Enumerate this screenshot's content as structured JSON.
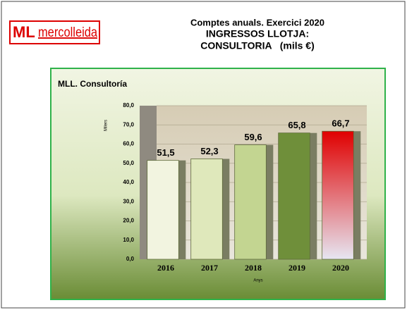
{
  "logo": {
    "mark": "ML",
    "text": "mercolleida"
  },
  "header": {
    "lines": [
      "Comptes anuals. Exercici 2020",
      "INGRESSOS LLOTJA:",
      "CONSULTORIA   (mils €)"
    ]
  },
  "chart_data": {
    "type": "bar",
    "title": "MLL. Consultoría",
    "y_label": "Milers",
    "x_label": "Anys",
    "categories": [
      "2016",
      "2017",
      "2018",
      "2019",
      "2020"
    ],
    "values": [
      51.5,
      52.3,
      59.6,
      65.8,
      66.7
    ],
    "value_labels": [
      "51,5",
      "52,3",
      "59,6",
      "65,8",
      "66,7"
    ],
    "colors": [
      "#f2f4e0",
      "#dfe8bb",
      "#c3d591",
      "#6f8f3a",
      "#e00000"
    ],
    "ylim": [
      0,
      80
    ],
    "yticks": [
      {
        "value": 0,
        "label": "0,0"
      },
      {
        "value": 10,
        "label": "10,0"
      },
      {
        "value": 20,
        "label": "20,0"
      },
      {
        "value": 30,
        "label": "30,0"
      },
      {
        "value": 40,
        "label": "40,0"
      },
      {
        "value": 50,
        "label": "50,0"
      },
      {
        "value": 60,
        "label": "60,0"
      },
      {
        "value": 70,
        "label": "70,0"
      },
      {
        "value": 80,
        "label": "80,0"
      }
    ],
    "grid": true
  }
}
